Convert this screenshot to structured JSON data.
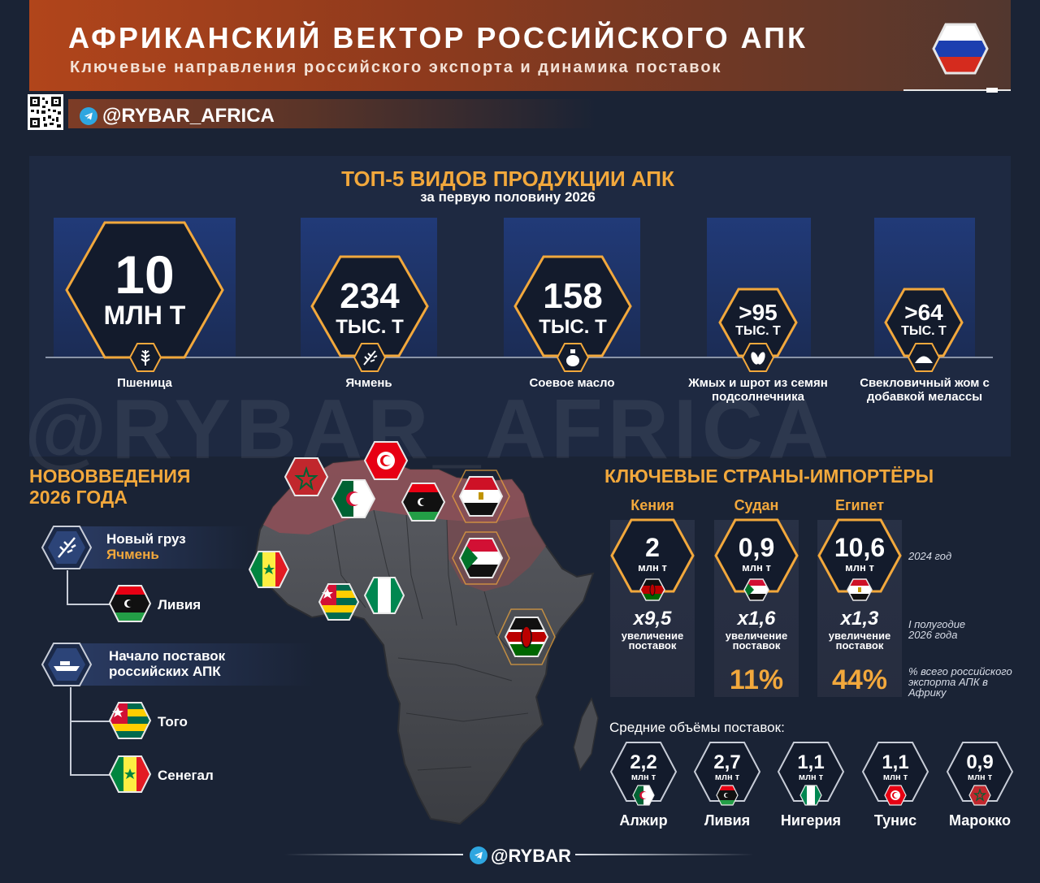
{
  "header": {
    "title": "АФРИКАНСКИЙ ВЕКТОР РОССИЙСКОГО АПК",
    "subtitle": "Ключевые направления российского экспорта и динамика поставок",
    "flag_icon": "russia-flag-icon"
  },
  "channel": {
    "label": "@RYBAR_AFRICA",
    "icon": "telegram-icon"
  },
  "watermark": "@RYBAR_AFRICA",
  "top5": {
    "title": "ТОП-5 ВИДОВ ПРОДУКЦИИ АПК",
    "subtitle": "за первую половину 2026",
    "items": [
      {
        "value": "10",
        "unit": "МЛН Т",
        "name": "Пшеница",
        "icon": "wheat-icon"
      },
      {
        "value": "234",
        "unit": "ТЫС. Т",
        "name": "Ячмень",
        "icon": "barley-icon"
      },
      {
        "value": "158",
        "unit": "ТЫС. Т",
        "name": "Соевое масло",
        "icon": "oil-bottle-icon"
      },
      {
        "value": ">95",
        "unit": "ТЫС. Т",
        "name": "Жмых и шрот из семян подсолнечника",
        "icon": "seeds-icon"
      },
      {
        "value": ">64",
        "unit": "ТЫС. Т",
        "name": "Свекловичный жом с добавкой мелассы",
        "icon": "pile-icon"
      }
    ]
  },
  "novelties": {
    "title_line1": "НОВОВВЕДЕНИЯ",
    "title_line2": "2026 ГОДА",
    "new_cargo_label": "Новый груз",
    "new_cargo_value": "Ячмень",
    "new_cargo_country": "Ливия",
    "deliveries_label_line1": "Начало поставок",
    "deliveries_label_line2": "российских АПК",
    "countries": [
      "Того",
      "Сенегал"
    ]
  },
  "importers": {
    "title": "КЛЮЧЕВЫЕ СТРАНЫ-ИМПОРТЁРЫ",
    "note_year": "2024 год",
    "note_half": "I полугодие 2026 года",
    "note_pct": "% всего российского экспорта АПК в Африку",
    "increase_label": "увеличение поставок",
    "unit": "млн т",
    "countries": [
      {
        "name": "Кения",
        "value": "2",
        "mult": "х9,5",
        "pct": ""
      },
      {
        "name": "Судан",
        "value": "0,9",
        "mult": "х1,6",
        "pct": "11%"
      },
      {
        "name": "Египет",
        "value": "10,6",
        "mult": "х1,3",
        "pct": "44%"
      }
    ]
  },
  "average": {
    "title": "Средние объёмы поставок:",
    "unit": "млн т",
    "countries": [
      {
        "name": "Алжир",
        "value": "2,2"
      },
      {
        "name": "Ливия",
        "value": "2,7"
      },
      {
        "name": "Нигерия",
        "value": "1,1"
      },
      {
        "name": "Тунис",
        "value": "1,1"
      },
      {
        "name": "Марокко",
        "value": "0,9"
      }
    ]
  },
  "footer": {
    "label": "@RYBAR",
    "icon": "telegram-icon"
  },
  "colors": {
    "accent": "#f2a83c",
    "header": "#b1451b",
    "panel": "#1e2941"
  }
}
